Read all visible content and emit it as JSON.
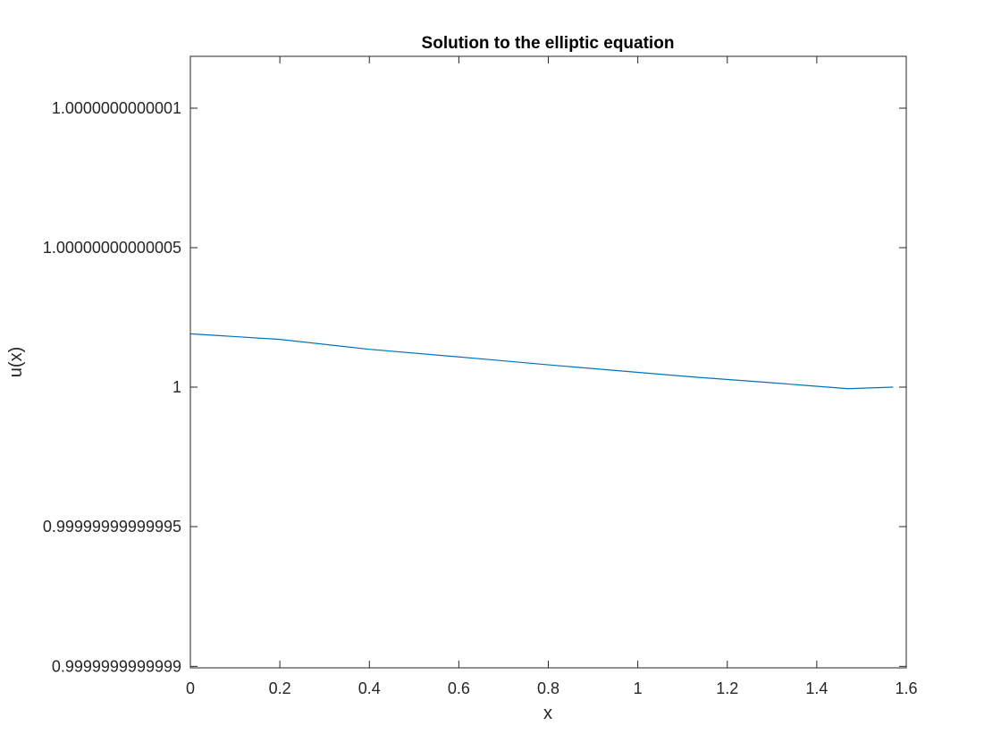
{
  "chart_data": {
    "type": "line",
    "title": "Solution to the elliptic equation",
    "xlabel": "x",
    "ylabel": "u(x)",
    "xlim": [
      0,
      1.6
    ],
    "ylim": [
      0.9999999999999,
      1.00000000000012
    ],
    "x_ticks": [
      0,
      0.2,
      0.4,
      0.6,
      0.8,
      1,
      1.2,
      1.4,
      1.6
    ],
    "x_tick_labels": [
      "0",
      "0.2",
      "0.4",
      "0.6",
      "0.8",
      "1",
      "1.2",
      "1.4",
      "1.6"
    ],
    "y_ticks": [
      0.9999999999999,
      0.99999999999995,
      1,
      1.00000000000005,
      1.0000000000001
    ],
    "y_tick_labels": [
      "0.9999999999999",
      "0.99999999999995",
      "1",
      "1.00000000000005",
      "1.0000000000001"
    ],
    "grid": false,
    "series": [
      {
        "color": "#0072bd",
        "x": [
          0,
          0.2,
          0.4,
          0.66,
          0.8,
          1.13,
          1.3,
          1.47,
          1.5708
        ],
        "y": [
          1.000000000000019,
          1.000000000000017,
          1.0000000000000135,
          1.00000000000001,
          1.000000000000008,
          1.0000000000000036,
          1.0000000000000016,
          0.9999999999999994,
          1.0
        ]
      }
    ]
  }
}
